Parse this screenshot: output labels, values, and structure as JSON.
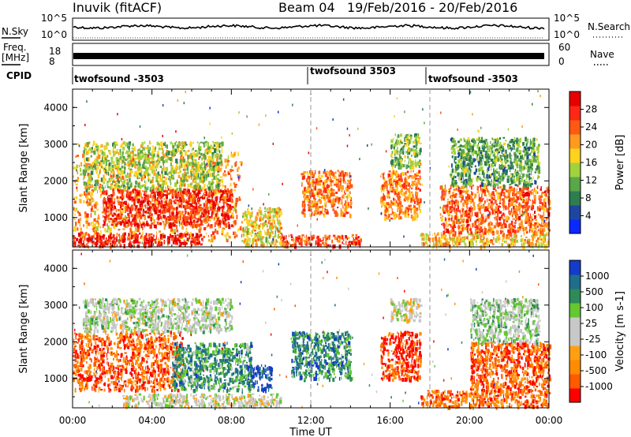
{
  "header": {
    "station": "Inuvik (fitACF)",
    "beam": "Beam 04",
    "date_range": "19/Feb/2016 - 20/Feb/2016"
  },
  "top_panels": {
    "nsky_label": "N.Sky",
    "nsearch_label": "N.Search",
    "nsky_ticks": [
      "10^5",
      "10^0"
    ],
    "nsearch_ticks": [
      "10^5",
      "10^0"
    ],
    "freq_label": "Freq.",
    "freq_unit": "[MHz]",
    "freq_ticks": [
      "18",
      "8"
    ],
    "nave_label": "Nave",
    "nave_ticks": [
      "60",
      "0"
    ],
    "cpid_label": "CPID",
    "cpid_segments": [
      {
        "name": "twofsound -3503",
        "start_hour": 0
      },
      {
        "name": "twofsound 3503",
        "start_hour": 12
      },
      {
        "name": "twofsound -3503",
        "start_hour": 18
      }
    ]
  },
  "colors": {
    "power_scale": [
      "#0a28ff",
      "#1e46a0",
      "#2e7d4e",
      "#5aa64a",
      "#9fd23c",
      "#ffd21e",
      "#ff9a1e",
      "#ff5a14",
      "#ff2814",
      "#e60000"
    ],
    "velocity_scale": [
      "#ff0000",
      "#ff5a00",
      "#ff8c00",
      "#ffa014",
      "#c8c8c8",
      "#c8c8c8",
      "#64c832",
      "#2e8b57",
      "#1e6e8c",
      "#143cc8"
    ]
  },
  "chart_data": [
    {
      "type": "heatmap",
      "panel": "power",
      "title": "",
      "xlabel": "Time UT",
      "ylabel": "Slant Range [km]",
      "x_ticks": [
        "00:00",
        "04:00",
        "08:00",
        "12:00",
        "16:00",
        "20:00",
        "00:00"
      ],
      "xlim_hours": [
        0,
        24
      ],
      "y_ticks": [
        "1000",
        "2000",
        "3000",
        "4000"
      ],
      "ylim": [
        200,
        4500
      ],
      "colorbar_label": "Power [dB]",
      "colorbar_ticks": [
        "28",
        "24",
        "20",
        "16",
        "12",
        "8",
        "4"
      ],
      "colorbar_range": [
        0,
        30
      ],
      "regions": [
        {
          "t0": 0.0,
          "t1": 8.5,
          "r0": 400,
          "r1": 2800,
          "level": 0.65
        },
        {
          "t0": 1.5,
          "t1": 8.0,
          "r0": 800,
          "r1": 1800,
          "level": 0.85
        },
        {
          "t0": 0.0,
          "t1": 6.5,
          "r0": 250,
          "r1": 600,
          "level": 0.9
        },
        {
          "t0": 0.5,
          "t1": 7.5,
          "r0": 1800,
          "r1": 3100,
          "level": 0.45
        },
        {
          "t0": 8.5,
          "t1": 10.5,
          "r0": 250,
          "r1": 1300,
          "level": 0.55
        },
        {
          "t0": 10.5,
          "t1": 14.5,
          "r0": 250,
          "r1": 550,
          "level": 0.8
        },
        {
          "t0": 11.5,
          "t1": 14.0,
          "r0": 1100,
          "r1": 2300,
          "level": 0.7
        },
        {
          "t0": 15.5,
          "t1": 17.5,
          "r0": 1000,
          "r1": 2300,
          "level": 0.7
        },
        {
          "t0": 16.0,
          "t1": 17.5,
          "r0": 2400,
          "r1": 3300,
          "level": 0.4
        },
        {
          "t0": 17.5,
          "t1": 24.0,
          "r0": 250,
          "r1": 600,
          "level": 0.6
        },
        {
          "t0": 18.5,
          "t1": 24.0,
          "r0": 600,
          "r1": 1900,
          "level": 0.75
        },
        {
          "t0": 19.0,
          "t1": 23.5,
          "r0": 1900,
          "r1": 3200,
          "level": 0.35
        }
      ]
    },
    {
      "type": "heatmap",
      "panel": "velocity",
      "title": "",
      "xlabel": "Time UT",
      "ylabel": "Slant Range [km]",
      "x_ticks": [
        "00:00",
        "04:00",
        "08:00",
        "12:00",
        "16:00",
        "20:00",
        "00:00"
      ],
      "xlim_hours": [
        0,
        24
      ],
      "y_ticks": [
        "1000",
        "2000",
        "3000",
        "4000"
      ],
      "ylim": [
        200,
        4500
      ],
      "colorbar_label": "Velocity [m s-1]",
      "colorbar_ticks": [
        "1000",
        "500",
        "100",
        "25",
        "-25",
        "-100",
        "-500",
        "-1000"
      ],
      "colorbar_range": [
        -1000,
        1000
      ],
      "regions": [
        {
          "t0": 0.0,
          "t1": 5.5,
          "r0": 700,
          "r1": 2300,
          "level": 0.15
        },
        {
          "t0": 5.0,
          "t1": 9.0,
          "r0": 700,
          "r1": 2000,
          "level": 0.75
        },
        {
          "t0": 8.8,
          "t1": 10.0,
          "r0": 700,
          "r1": 1400,
          "level": 0.95
        },
        {
          "t0": 2.5,
          "t1": 10.5,
          "r0": 250,
          "r1": 600,
          "level": 0.5
        },
        {
          "t0": 0.5,
          "t1": 8.0,
          "r0": 2300,
          "r1": 3200,
          "level": 0.55
        },
        {
          "t0": 11.0,
          "t1": 14.0,
          "r0": 1000,
          "r1": 2300,
          "level": 0.8
        },
        {
          "t0": 15.5,
          "t1": 17.5,
          "r0": 1000,
          "r1": 2300,
          "level": 0.1
        },
        {
          "t0": 16.0,
          "t1": 17.5,
          "r0": 2600,
          "r1": 3200,
          "level": 0.5
        },
        {
          "t0": 17.5,
          "t1": 24.0,
          "r0": 250,
          "r1": 700,
          "level": 0.2
        },
        {
          "t0": 20.0,
          "t1": 24.0,
          "r0": 700,
          "r1": 2000,
          "level": 0.15
        },
        {
          "t0": 20.0,
          "t1": 23.5,
          "r0": 2000,
          "r1": 3200,
          "level": 0.6
        }
      ]
    }
  ]
}
